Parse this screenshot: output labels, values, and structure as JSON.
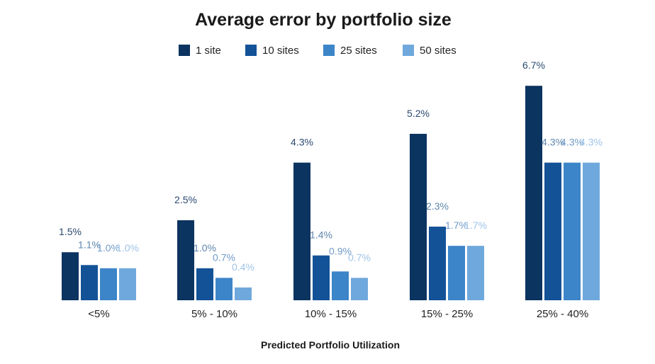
{
  "chart_data": {
    "type": "bar",
    "title": "Average error by portfolio size",
    "xlabel": "Predicted Portfolio Utilization",
    "ylabel": "",
    "categories": [
      "<5%",
      "5% - 10%",
      "10% - 15%",
      "15% - 25%",
      "25% - 40%"
    ],
    "series": [
      {
        "name": "1 site",
        "color": "#0b3460",
        "values": [
          1.5,
          2.5,
          4.3,
          5.2,
          6.7
        ],
        "labels": [
          "1.5%",
          "2.5%",
          "4.3%",
          "5.2%",
          "6.7%"
        ]
      },
      {
        "name": "10 sites",
        "color": "#135297",
        "values": [
          1.1,
          1.0,
          1.4,
          2.3,
          4.3
        ],
        "labels": [
          "1.1%",
          "1.0%",
          "1.4%",
          "2.3%",
          "4.3%"
        ]
      },
      {
        "name": "25 sites",
        "color": "#3c85c8",
        "values": [
          1.0,
          0.7,
          0.9,
          1.7,
          4.3
        ],
        "labels": [
          "1.0%",
          "0.7%",
          "0.9%",
          "1.7%",
          "4.3%"
        ]
      },
      {
        "name": "50 sites",
        "color": "#6fa8dc",
        "values": [
          1.0,
          0.4,
          0.7,
          1.7,
          4.3
        ],
        "labels": [
          "1.0%",
          "0.4%",
          "0.7%",
          "1.7%",
          "4.3%"
        ]
      }
    ],
    "label_colors": [
      "#2b4a6e",
      "#5e86ad",
      "#6f9bc8",
      "#9fc3e6"
    ],
    "ylim": [
      0,
      6.7
    ],
    "grid": false,
    "legend": "top-center"
  }
}
